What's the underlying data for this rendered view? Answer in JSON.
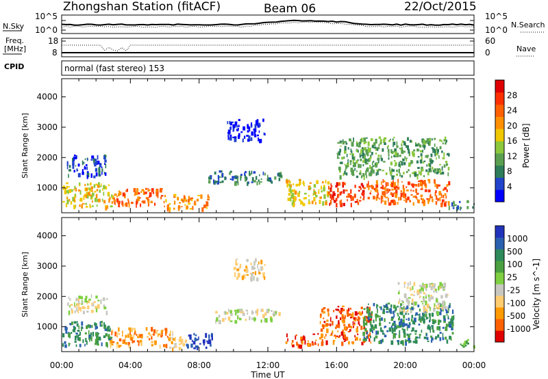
{
  "header": {
    "station": "Zhongshan Station (fitACF)",
    "beam": "Beam 06",
    "date": "22/Oct/2015",
    "mode": "normal (fast stereo) 153"
  },
  "panels": {
    "nsky": {
      "label": "N.Sky",
      "ticks": [
        "10^5",
        "10^0"
      ],
      "right_label": "N.Search",
      "right_ticks": [
        "10^5",
        "10^0"
      ]
    },
    "freq": {
      "label_line1": "Freq.",
      "label_line2": "[MHz]",
      "ticks": [
        "18",
        "8"
      ],
      "right_label": "Nave",
      "right_ticks": [
        "60",
        "0"
      ]
    },
    "cpid": {
      "label": "CPID"
    }
  },
  "x_axis": {
    "label": "Time UT",
    "ticks": [
      "00:00",
      "04:00",
      "08:00",
      "12:00",
      "16:00",
      "20:00",
      "00:00"
    ]
  },
  "chart_data": [
    {
      "type": "heatmap",
      "name": "power",
      "ylabel": "Slant Range [km]",
      "yticks": [
        1000,
        2000,
        3000,
        4000
      ],
      "ylim": [
        180,
        4600
      ],
      "xlim_hours": [
        0,
        24
      ],
      "colorbar": {
        "label": "Power [dB]",
        "ticks": [
          "28",
          "24",
          "20",
          "16",
          "12",
          "8",
          "4"
        ],
        "colors": [
          "#0000ff",
          "#2244cc",
          "#2e7d5a",
          "#5aa050",
          "#8cc83c",
          "#f0c800",
          "#ff9000",
          "#ff6000",
          "#ff3000",
          "#e00000"
        ]
      },
      "echo_regions": [
        {
          "t0": 0.0,
          "t1": 3.0,
          "r0": 400,
          "r1": 1200,
          "level": 5
        },
        {
          "t0": 3.0,
          "t1": 5.8,
          "r0": 450,
          "r1": 1000,
          "level": 7
        },
        {
          "t0": 5.8,
          "t1": 8.5,
          "r0": 300,
          "r1": 800,
          "level": 6
        },
        {
          "t0": 0.3,
          "t1": 2.6,
          "r0": 1400,
          "r1": 2100,
          "level": 1
        },
        {
          "t0": 8.5,
          "t1": 12.8,
          "r0": 1200,
          "r1": 1600,
          "level": 2
        },
        {
          "t0": 9.6,
          "t1": 11.8,
          "r0": 2600,
          "r1": 3300,
          "level": 0
        },
        {
          "t0": 13.0,
          "t1": 15.5,
          "r0": 500,
          "r1": 1300,
          "level": 5
        },
        {
          "t0": 15.5,
          "t1": 17.8,
          "r0": 500,
          "r1": 1200,
          "level": 8
        },
        {
          "t0": 16.0,
          "t1": 22.5,
          "r0": 1400,
          "r1": 2700,
          "level": 3
        },
        {
          "t0": 17.8,
          "t1": 22.5,
          "r0": 500,
          "r1": 1300,
          "level": 7
        },
        {
          "t0": 22.5,
          "t1": 24.0,
          "r0": 350,
          "r1": 600,
          "level": 2
        }
      ]
    },
    {
      "type": "heatmap",
      "name": "velocity",
      "ylabel": "Slant Range [km]",
      "yticks": [
        1000,
        2000,
        3000,
        4000
      ],
      "ylim": [
        180,
        4600
      ],
      "xlim_hours": [
        0,
        24
      ],
      "colorbar": {
        "label": "Velocity [m s^-1]",
        "ticks": [
          "1000",
          "500",
          "100",
          "25",
          "-25",
          "-100",
          "-500",
          "-1000"
        ],
        "colors": [
          "#e00000",
          "#ff6000",
          "#ff9a00",
          "#ffcc70",
          "#c8c8c0",
          "#7ed040",
          "#4aa040",
          "#2e8a5a",
          "#2a60b0",
          "#2233bb"
        ]
      },
      "echo_regions": [
        {
          "t0": 0.0,
          "t1": 2.8,
          "r0": 400,
          "r1": 1200,
          "level": 7
        },
        {
          "t0": 2.8,
          "t1": 6.2,
          "r0": 400,
          "r1": 1000,
          "level": 2
        },
        {
          "t0": 6.2,
          "t1": 7.2,
          "r0": 300,
          "r1": 900,
          "level": 3
        },
        {
          "t0": 7.2,
          "t1": 8.8,
          "r0": 300,
          "r1": 800,
          "level": 9
        },
        {
          "t0": 0.3,
          "t1": 2.6,
          "r0": 1500,
          "r1": 2100,
          "level": 4
        },
        {
          "t0": 8.8,
          "t1": 12.8,
          "r0": 1200,
          "r1": 1600,
          "level": 4
        },
        {
          "t0": 10.0,
          "t1": 11.8,
          "r0": 2600,
          "r1": 3300,
          "level": 3
        },
        {
          "t0": 13.0,
          "t1": 15.0,
          "r0": 400,
          "r1": 800,
          "level": 1
        },
        {
          "t0": 15.0,
          "t1": 18.0,
          "r0": 500,
          "r1": 1700,
          "level": 1
        },
        {
          "t0": 17.5,
          "t1": 22.8,
          "r0": 500,
          "r1": 1800,
          "level": 7
        },
        {
          "t0": 19.5,
          "t1": 22.5,
          "r0": 1500,
          "r1": 2500,
          "level": 4
        },
        {
          "t0": 22.8,
          "t1": 24.0,
          "r0": 350,
          "r1": 600,
          "level": 6
        }
      ]
    }
  ]
}
